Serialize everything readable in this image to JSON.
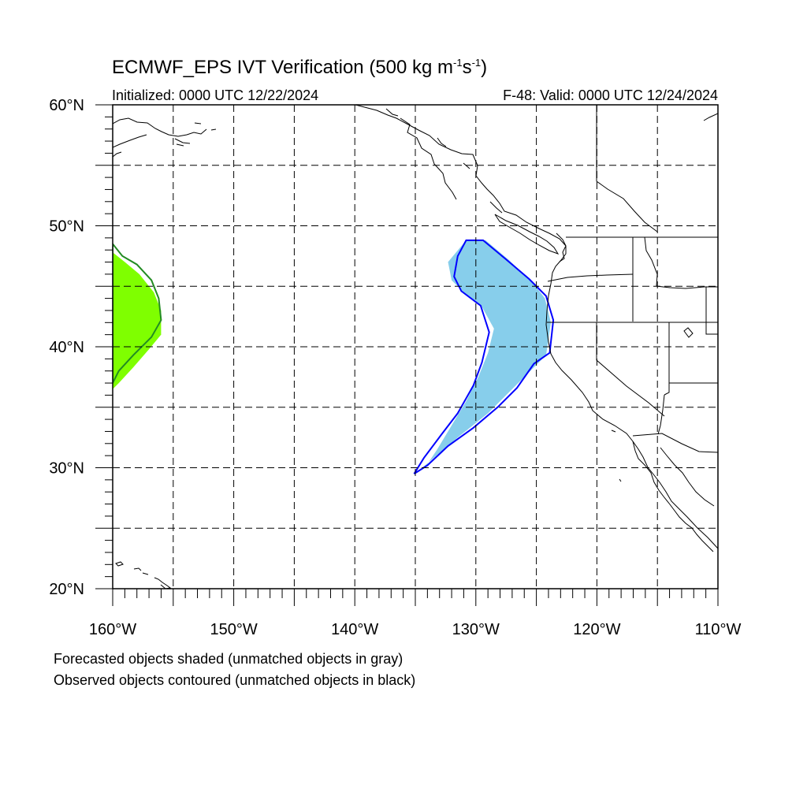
{
  "header": {
    "title_prefix": "ECMWF_EPS IVT Verification (500 kg m",
    "title_exp1": "-1",
    "title_mid": "s",
    "title_exp2": "-1",
    "title_suffix": ")",
    "initialized": "Initialized: 0000 UTC 12/22/2024",
    "valid": "F-48: Valid: 0000 UTC 12/24/2024"
  },
  "map": {
    "lon_range": [
      -160,
      -110
    ],
    "lat_range": [
      20,
      60
    ],
    "lat_labels": [
      {
        "lat": 60,
        "text": "60°N"
      },
      {
        "lat": 50,
        "text": "50°N"
      },
      {
        "lat": 40,
        "text": "40°N"
      },
      {
        "lat": 30,
        "text": "30°N"
      },
      {
        "lat": 20,
        "text": "20°N"
      }
    ],
    "lon_labels": [
      {
        "lon": -160,
        "text": "160°W"
      },
      {
        "lon": -150,
        "text": "150°W"
      },
      {
        "lon": -140,
        "text": "140°W"
      },
      {
        "lon": -130,
        "text": "130°W"
      },
      {
        "lon": -120,
        "text": "120°W"
      },
      {
        "lon": -110,
        "text": "110°W"
      }
    ],
    "grid_lons": [
      -155,
      -150,
      -145,
      -140,
      -135,
      -130,
      -125,
      -120,
      -115
    ],
    "grid_lats": [
      25,
      30,
      35,
      40,
      45,
      50,
      55
    ],
    "colors": {
      "matched_forecast_1": "#87ceeb",
      "matched_observed_1": "#0000ff",
      "matched_forecast_2": "#7fff00",
      "matched_observed_2": "#228b22",
      "coastline": "#000000",
      "grid": "#000000"
    },
    "objects": [
      {
        "id": "object-northeast-pacific",
        "forecast": [
          [
            -130.8,
            48.8
          ],
          [
            -129.2,
            48.8
          ],
          [
            -127.3,
            47.2
          ],
          [
            -125.2,
            45.2
          ],
          [
            -124.3,
            44
          ],
          [
            -123.8,
            42
          ],
          [
            -124.2,
            39.3
          ],
          [
            -125.5,
            38
          ],
          [
            -127.5,
            36
          ],
          [
            -129,
            34.5
          ],
          [
            -131.5,
            32.5
          ],
          [
            -133.5,
            30.8
          ],
          [
            -135,
            29.5
          ],
          [
            -134.2,
            30
          ],
          [
            -133.2,
            31.5
          ],
          [
            -132,
            33.5
          ],
          [
            -130.8,
            35.5
          ],
          [
            -129.8,
            37.5
          ],
          [
            -129,
            39.5
          ],
          [
            -128.5,
            41.5
          ],
          [
            -129.5,
            43.3
          ],
          [
            -131,
            44.5
          ],
          [
            -132,
            45.5
          ],
          [
            -132.3,
            47
          ]
        ],
        "observed": [
          [
            -130.8,
            48.8
          ],
          [
            -129.4,
            48.8
          ],
          [
            -127.6,
            47.3
          ],
          [
            -125.6,
            45.6
          ],
          [
            -124.2,
            44.2
          ],
          [
            -123.6,
            42.2
          ],
          [
            -123.9,
            39.5
          ],
          [
            -125.2,
            38.6
          ],
          [
            -126.6,
            36.6
          ],
          [
            -128.2,
            35
          ],
          [
            -130.2,
            33.3
          ],
          [
            -132.3,
            31.8
          ],
          [
            -134,
            30.2
          ],
          [
            -135.1,
            29.5
          ],
          [
            -134.3,
            30.8
          ],
          [
            -132.8,
            32.8
          ],
          [
            -131.5,
            34.5
          ],
          [
            -130.2,
            36.8
          ],
          [
            -129.5,
            38.7
          ],
          [
            -128.9,
            41.2
          ],
          [
            -129.6,
            43.4
          ],
          [
            -131.2,
            44.6
          ],
          [
            -131.8,
            45.8
          ],
          [
            -131.5,
            47.5
          ]
        ]
      },
      {
        "id": "object-central-pacific",
        "forecast": [
          [
            -160,
            47.8
          ],
          [
            -159,
            47
          ],
          [
            -157.8,
            46
          ],
          [
            -156.6,
            44.5
          ],
          [
            -156,
            43
          ],
          [
            -156,
            41
          ],
          [
            -157,
            39.8
          ],
          [
            -158.3,
            38.3
          ],
          [
            -159.5,
            37
          ],
          [
            -160,
            36.5
          ]
        ],
        "observed": [
          [
            -160,
            48.5
          ],
          [
            -159.2,
            47.5
          ],
          [
            -158,
            46.8
          ],
          [
            -156.8,
            45.5
          ],
          [
            -156.2,
            44
          ],
          [
            -156,
            42.2
          ],
          [
            -156.8,
            40.8
          ],
          [
            -158.3,
            39.3
          ],
          [
            -159.5,
            38
          ],
          [
            -160,
            37
          ]
        ]
      }
    ]
  },
  "notes": {
    "forecast": "Forecasted objects shaded (unmatched objects in gray)",
    "observed": "Observed objects contoured (unmatched objects in black)"
  }
}
